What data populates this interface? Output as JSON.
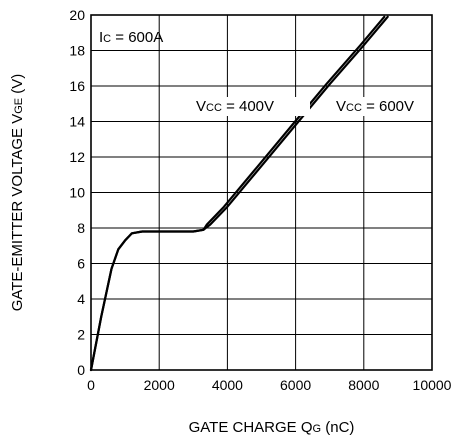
{
  "chart_data": {
    "type": "line",
    "title": "",
    "xlabel": {
      "main": "GATE CHARGE  Q",
      "sub": "G",
      "unit": " (nC)"
    },
    "ylabel": {
      "main": "GATE-EMITTER VOLTAGE  V",
      "sub": "GE",
      "unit": " (V)"
    },
    "xlim": [
      0,
      10000
    ],
    "ylim": [
      0,
      20
    ],
    "xticks": [
      0,
      2000,
      4000,
      6000,
      8000,
      10000
    ],
    "yticks": [
      0,
      2,
      4,
      6,
      8,
      10,
      12,
      14,
      16,
      18,
      20
    ],
    "grid": true,
    "annotations": [
      {
        "main": "I",
        "sub": "C",
        "rest": " = 600A"
      },
      {
        "main": "V",
        "sub": "CC",
        "rest": " = 400V"
      },
      {
        "main": "V",
        "sub": "CC",
        "rest": " = 600V"
      }
    ],
    "series": [
      {
        "x": [
          0,
          300,
          600,
          800,
          1000,
          1200,
          1500,
          2000,
          2500,
          3000,
          3300,
          3500,
          4000,
          5000,
          6000,
          7000,
          8000,
          8700
        ],
        "y": [
          0,
          3.0,
          5.7,
          6.8,
          7.3,
          7.7,
          7.8,
          7.8,
          7.8,
          7.8,
          7.9,
          8.2,
          9.2,
          11.5,
          13.8,
          16.1,
          18.3,
          19.9
        ]
      },
      {
        "x": [
          0,
          300,
          600,
          800,
          1000,
          1200,
          1500,
          2000,
          2500,
          3000,
          3300,
          3400,
          3900,
          4900,
          5900,
          6900,
          7900,
          8600
        ],
        "y": [
          0,
          3.0,
          5.7,
          6.8,
          7.3,
          7.7,
          7.8,
          7.8,
          7.8,
          7.8,
          7.9,
          8.2,
          9.2,
          11.5,
          13.8,
          16.1,
          18.3,
          19.9
        ]
      }
    ]
  }
}
